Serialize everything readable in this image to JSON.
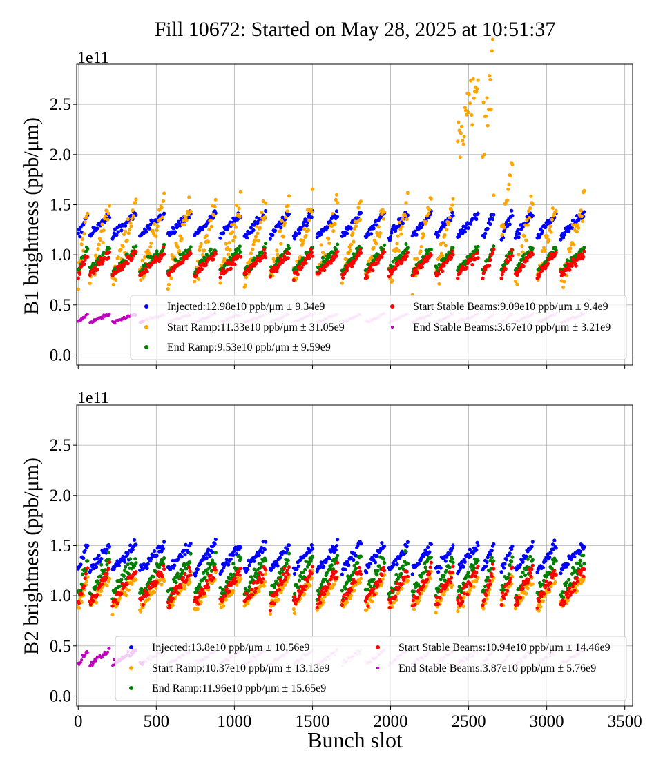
{
  "chart_data": [
    {
      "type": "scatter",
      "title": "Fill 10672: Started on May 28, 2025 at 10:51:37",
      "ylabel": "B1 brightness (ppb/μm)",
      "xlabel": "",
      "multiplier": "1e11",
      "xlim": [
        -10,
        3550
      ],
      "ylim": [
        -0.1,
        2.9
      ],
      "x_ticks": [
        "0",
        "500",
        "1000",
        "1500",
        "2000",
        "2500",
        "3000",
        "3500"
      ],
      "y_ticks": [
        "0.0",
        "0.5",
        "1.0",
        "1.5",
        "2.0",
        "2.5"
      ],
      "grid": true,
      "legend_position": "lower-right",
      "series": [
        {
          "name": "Injected:12.98e10 ppb/μm ± 9.34e9",
          "color": "#0000ff",
          "mean": 1.298,
          "std": 0.0934
        },
        {
          "name": "Start Ramp:11.33e10 ppb/μm ± 31.05e9",
          "color": "#ffa500",
          "mean": 1.133,
          "std": 0.3105
        },
        {
          "name": "End Ramp:9.53e10 ppb/μm ± 9.59e9",
          "color": "#008000",
          "mean": 0.953,
          "std": 0.0959
        },
        {
          "name": "Start Stable Beams:9.09e10 ppb/μm ± 9.4e9",
          "color": "#ff0000",
          "mean": 0.909,
          "std": 0.094
        },
        {
          "name": "End Stable Beams:3.67e10 ppb/μm ± 3.21e9",
          "color": "#bf00bf",
          "mean": 0.367,
          "std": 0.0321
        }
      ]
    },
    {
      "type": "scatter",
      "title": "",
      "ylabel": "B2 brightness (ppb/μm)",
      "xlabel": "Bunch slot",
      "multiplier": "1e11",
      "xlim": [
        -10,
        3550
      ],
      "ylim": [
        -0.1,
        2.9
      ],
      "x_ticks": [
        "0",
        "500",
        "1000",
        "1500",
        "2000",
        "2500",
        "3000",
        "3500"
      ],
      "y_ticks": [
        "0.0",
        "0.5",
        "1.0",
        "1.5",
        "2.0",
        "2.5"
      ],
      "grid": true,
      "legend_position": "lower-right",
      "series": [
        {
          "name": "Injected:13.8e10 ppb/μm ± 10.56e9",
          "color": "#0000ff",
          "mean": 1.38,
          "std": 0.1056
        },
        {
          "name": "Start Ramp:10.37e10 ppb/μm ± 13.13e9",
          "color": "#ffa500",
          "mean": 1.037,
          "std": 0.1313
        },
        {
          "name": "End Ramp:11.96e10 ppb/μm ± 15.65e9",
          "color": "#008000",
          "mean": 1.196,
          "std": 0.1565
        },
        {
          "name": "Start Stable Beams:10.94e10 ppb/μm ± 14.46e9",
          "color": "#ff0000",
          "mean": 1.094,
          "std": 0.1446
        },
        {
          "name": "End Stable Beams:3.87e10 ppb/μm ± 5.76e9",
          "color": "#bf00bf",
          "mean": 0.387,
          "std": 0.0576
        }
      ]
    }
  ]
}
